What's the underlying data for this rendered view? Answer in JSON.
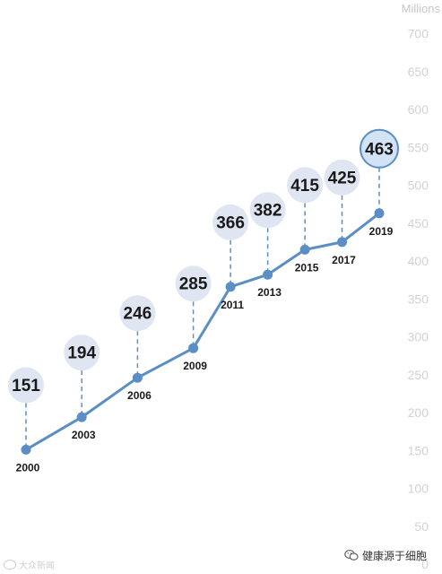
{
  "chart_data": {
    "type": "line",
    "ylabel": "Millions",
    "ylim": [
      0,
      700
    ],
    "yticks": [
      0,
      50,
      100,
      150,
      200,
      250,
      300,
      350,
      400,
      450,
      500,
      550,
      600,
      650,
      700
    ],
    "grid": false,
    "series": [
      {
        "x": [
          "2000",
          "2003",
          "2006",
          "2009",
          "2011",
          "2013",
          "2015",
          "2017",
          "2019"
        ],
        "values": [
          151,
          194,
          246,
          285,
          366,
          382,
          415,
          425,
          463
        ]
      }
    ],
    "colors": {
      "line": "#5b8ec4",
      "bubble_fill": "#dfe6f2",
      "bubble_highlight_fill": "#d3e2f4",
      "bubble_highlight_stroke": "#5b8ec4",
      "tick_text": "#d2d2d2",
      "label_text": "#1a1a1a"
    }
  },
  "footer": {
    "source_watermark": "大众新闻",
    "account_name": "健康源于细胞"
  }
}
